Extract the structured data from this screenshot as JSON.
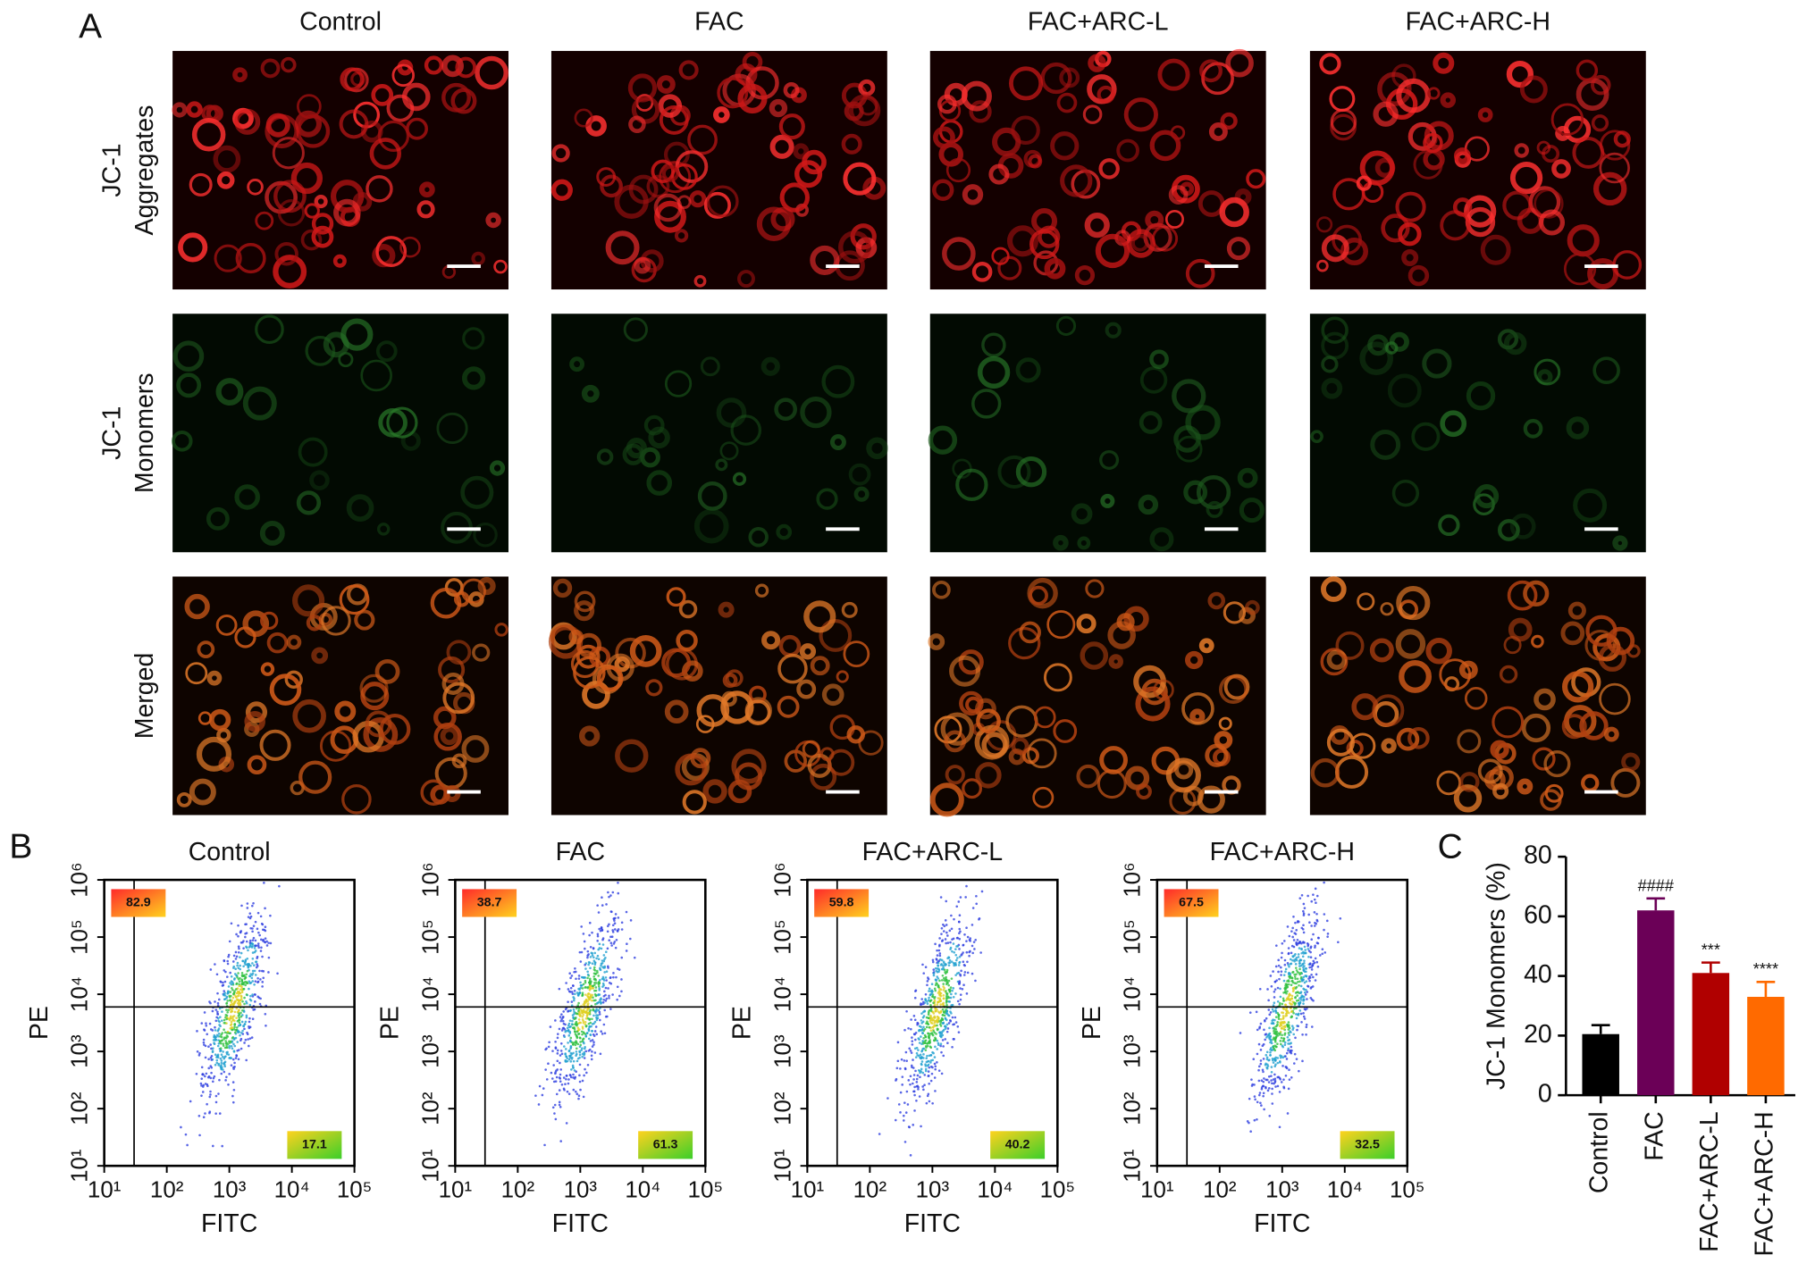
{
  "panel_a": {
    "label": "A",
    "columns": [
      "Control",
      "FAC",
      "FAC+ARC-L",
      "FAC+ARC-H"
    ],
    "rows": [
      [
        "JC-1",
        "Aggregates"
      ],
      [
        "JC-1",
        "Monomers"
      ],
      [
        "Merged"
      ]
    ]
  },
  "panel_b": {
    "label": "B",
    "xlabel": "FITC",
    "ylabel": "PE",
    "log": true,
    "xlim": [
      10,
      100000
    ],
    "ylim": [
      10,
      1000000
    ],
    "xticks": [
      {
        "value": 10,
        "label": "10¹"
      },
      {
        "value": 100,
        "label": "10²"
      },
      {
        "value": 1000,
        "label": "10³"
      },
      {
        "value": 10000,
        "label": "10⁴"
      },
      {
        "value": 100000,
        "label": "10⁵"
      }
    ],
    "yticks": [
      {
        "value": 10,
        "label": "10¹"
      },
      {
        "value": 100,
        "label": "10²"
      },
      {
        "value": 1000,
        "label": "10³"
      },
      {
        "value": 10000,
        "label": "10⁴"
      },
      {
        "value": 100000,
        "label": "10⁵"
      },
      {
        "value": 1000000,
        "label": "10⁶"
      }
    ],
    "gate_x": 30,
    "gate_y": 6000,
    "plots": [
      {
        "title": "Control",
        "upper_left": 82.9,
        "lower_right": 17.1
      },
      {
        "title": "FAC",
        "upper_left": 38.7,
        "lower_right": 61.3
      },
      {
        "title": "FAC+ARC-L",
        "upper_left": 59.8,
        "lower_right": 40.2
      },
      {
        "title": "FAC+ARC-H",
        "upper_left": 67.5,
        "lower_right": 32.5
      }
    ]
  },
  "chart_data": {
    "type": "bar",
    "label": "C",
    "ylabel": "JC-1 Monomers (%)",
    "categories": [
      "Control",
      "FAC",
      "FAC+ARC-L",
      "FAC+ARC-H"
    ],
    "values": [
      20.5,
      62,
      41,
      33
    ],
    "errors": [
      3,
      4,
      3.5,
      5
    ],
    "significance": [
      null,
      "####",
      "***",
      "****"
    ],
    "colors": [
      "#000000",
      "#6b0057",
      "#b00000",
      "#ff6a00"
    ],
    "ylim": [
      0,
      80
    ],
    "yticks": [
      0,
      20,
      40,
      60,
      80
    ]
  }
}
